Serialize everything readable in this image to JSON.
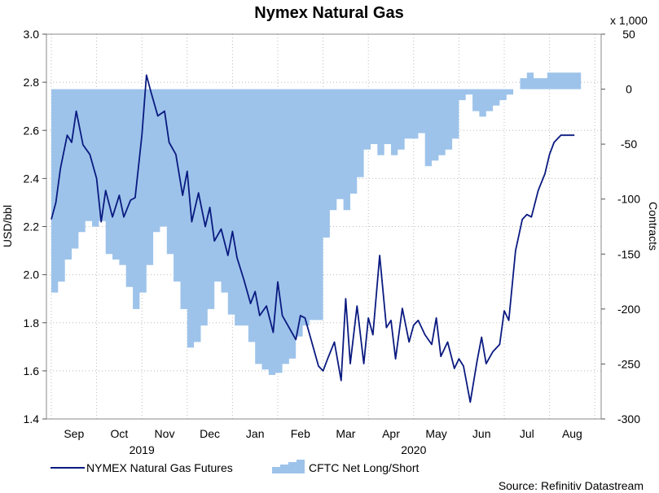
{
  "chart_data": {
    "type": "line",
    "title": "Nymex Natural Gas",
    "ylabel_left": "USD/bbl",
    "ylabel_right": "Contracts",
    "right_axis_multiplier": "x 1,000",
    "source": "Source: Refinitiv Datastream",
    "ylim_left": [
      1.4,
      3.0
    ],
    "yticks_left": [
      "1.4",
      "1.6",
      "1.8",
      "2.0",
      "2.2",
      "2.4",
      "2.6",
      "2.8",
      "3.0"
    ],
    "ylim_right": [
      -300,
      50
    ],
    "yticks_right": [
      "-300",
      "-250",
      "-200",
      "-150",
      "-100",
      "-50",
      "0",
      "50"
    ],
    "x_months": [
      "Sep",
      "Oct",
      "Nov",
      "Dec",
      "Jan",
      "Feb",
      "Mar",
      "Apr",
      "May",
      "Jun",
      "Jul",
      "Aug"
    ],
    "x_years": [
      {
        "label": "2019",
        "center_month": "Oct-Nov"
      },
      {
        "label": "2020",
        "center_month": "Apr-May"
      }
    ],
    "grid": true,
    "legend": {
      "placement": "bottom",
      "entries": [
        "NYMEX Natural Gas Futures",
        "CFTC Net Long/Short"
      ]
    },
    "series": [
      {
        "name": "NYMEX Natural Gas Futures",
        "axis": "left",
        "type": "line",
        "color": "#0a1a80",
        "x": [
          0.0,
          0.1,
          0.2,
          0.35,
          0.45,
          0.55,
          0.7,
          0.85,
          1.0,
          1.1,
          1.2,
          1.35,
          1.5,
          1.6,
          1.75,
          1.85,
          2.0,
          2.1,
          2.2,
          2.35,
          2.5,
          2.6,
          2.75,
          2.9,
          3.0,
          3.1,
          3.25,
          3.4,
          3.5,
          3.6,
          3.75,
          3.9,
          4.0,
          4.1,
          4.25,
          4.4,
          4.5,
          4.6,
          4.75,
          4.9,
          5.0,
          5.1,
          5.25,
          5.4,
          5.5,
          5.6,
          5.75,
          5.9,
          6.0,
          6.1,
          6.25,
          6.4,
          6.5,
          6.6,
          6.75,
          6.9,
          7.0,
          7.1,
          7.25,
          7.4,
          7.5,
          7.6,
          7.75,
          7.9,
          8.0,
          8.1,
          8.25,
          8.4,
          8.5,
          8.6,
          8.75,
          8.9,
          9.0,
          9.1,
          9.25,
          9.4,
          9.5,
          9.6,
          9.75,
          9.9,
          10.0,
          10.1,
          10.25,
          10.4,
          10.5,
          10.6,
          10.75,
          10.9,
          11.0,
          11.1,
          11.25,
          11.4,
          11.55
        ],
        "y": [
          2.23,
          2.3,
          2.44,
          2.58,
          2.55,
          2.68,
          2.54,
          2.5,
          2.4,
          2.22,
          2.35,
          2.24,
          2.33,
          2.24,
          2.31,
          2.32,
          2.58,
          2.83,
          2.76,
          2.66,
          2.68,
          2.55,
          2.5,
          2.33,
          2.43,
          2.22,
          2.34,
          2.2,
          2.28,
          2.14,
          2.19,
          2.08,
          2.18,
          2.07,
          1.98,
          1.88,
          1.93,
          1.83,
          1.87,
          1.76,
          1.97,
          1.83,
          1.78,
          1.73,
          1.83,
          1.82,
          1.72,
          1.62,
          1.6,
          1.65,
          1.72,
          1.56,
          1.9,
          1.63,
          1.87,
          1.63,
          1.82,
          1.75,
          2.08,
          1.78,
          1.81,
          1.65,
          1.86,
          1.72,
          1.79,
          1.81,
          1.75,
          1.71,
          1.82,
          1.66,
          1.72,
          1.61,
          1.65,
          1.62,
          1.47,
          1.64,
          1.74,
          1.63,
          1.68,
          1.71,
          1.85,
          1.81,
          2.1,
          2.23,
          2.25,
          2.24,
          2.35,
          2.42,
          2.5,
          2.55,
          2.58,
          2.58,
          2.58
        ]
      },
      {
        "name": "CFTC Net Long/Short",
        "axis": "right",
        "type": "area",
        "color": "#9dc3ea",
        "x": [
          0.0,
          0.15,
          0.3,
          0.45,
          0.6,
          0.75,
          0.9,
          1.05,
          1.2,
          1.35,
          1.5,
          1.65,
          1.8,
          1.95,
          2.1,
          2.25,
          2.4,
          2.55,
          2.7,
          2.85,
          3.0,
          3.15,
          3.3,
          3.45,
          3.6,
          3.75,
          3.9,
          4.05,
          4.2,
          4.35,
          4.5,
          4.65,
          4.8,
          4.95,
          5.1,
          5.25,
          5.4,
          5.55,
          5.7,
          5.85,
          6.0,
          6.15,
          6.3,
          6.45,
          6.6,
          6.75,
          6.9,
          7.05,
          7.2,
          7.35,
          7.5,
          7.65,
          7.8,
          7.95,
          8.1,
          8.25,
          8.4,
          8.55,
          8.7,
          8.85,
          9.0,
          9.15,
          9.3,
          9.45,
          9.6,
          9.75,
          9.9,
          10.05,
          10.2,
          10.35,
          10.5,
          10.65,
          10.8,
          10.95,
          11.1,
          11.25,
          11.4,
          11.55
        ],
        "y": [
          -185,
          -175,
          -155,
          -145,
          -130,
          -120,
          -125,
          -120,
          -150,
          -155,
          -160,
          -180,
          -200,
          -185,
          -160,
          -130,
          -125,
          -150,
          -175,
          -200,
          -235,
          -230,
          -215,
          -200,
          -175,
          -185,
          -205,
          -215,
          -215,
          -230,
          -250,
          -255,
          -260,
          -258,
          -250,
          -245,
          -225,
          -215,
          -210,
          -210,
          -135,
          -110,
          -100,
          -110,
          -95,
          -80,
          -55,
          -50,
          -60,
          -50,
          -60,
          -55,
          -45,
          -45,
          -40,
          -70,
          -65,
          -60,
          -55,
          -45,
          -10,
          -5,
          -20,
          -25,
          -20,
          -15,
          -10,
          -5,
          0,
          10,
          15,
          10,
          10,
          15,
          15,
          15,
          15,
          15
        ]
      }
    ]
  }
}
